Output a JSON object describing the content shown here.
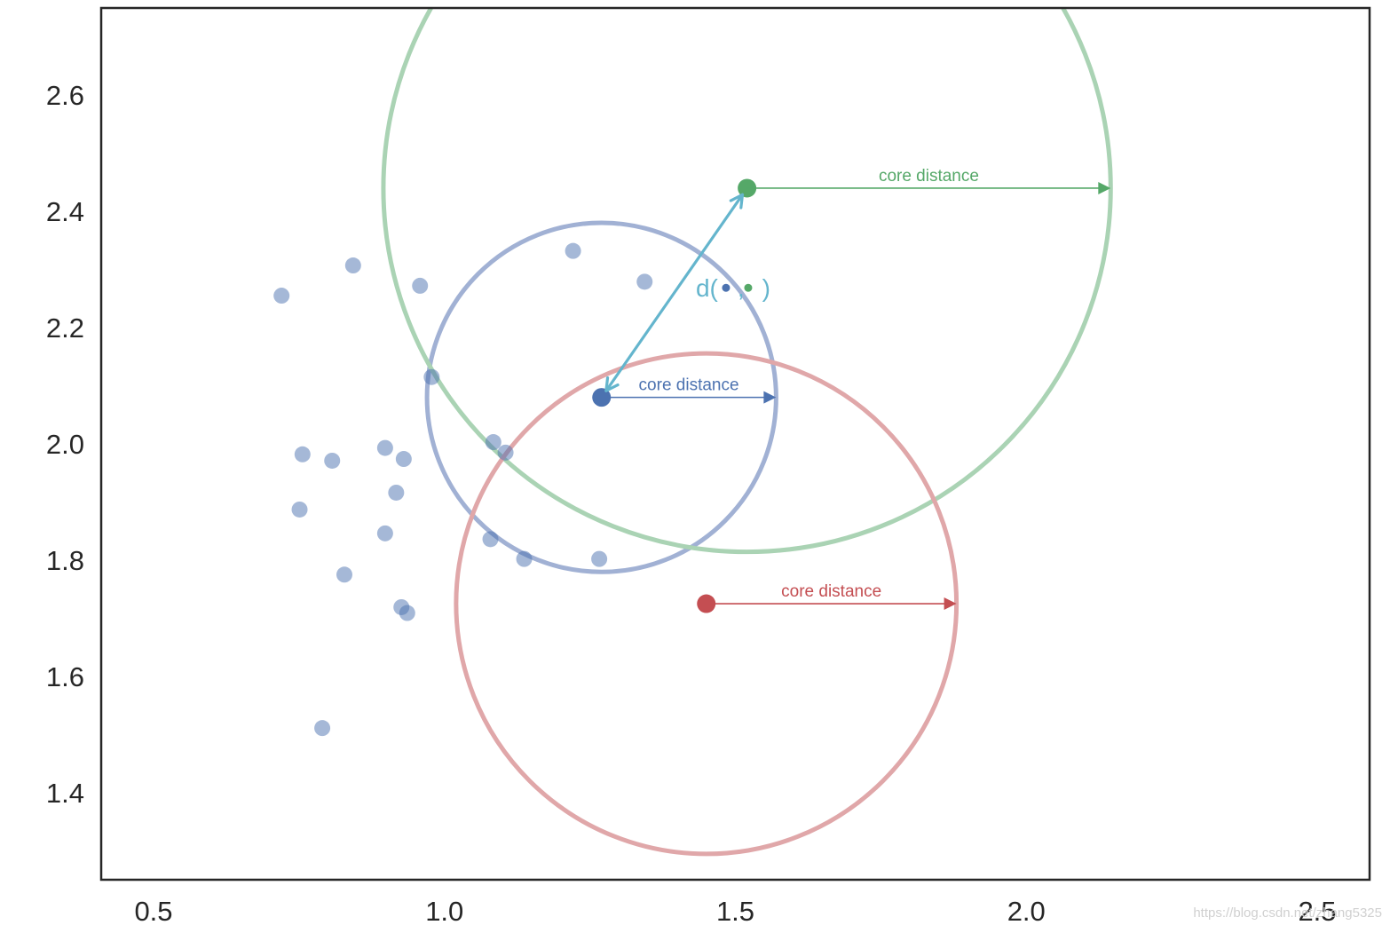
{
  "chart_data": {
    "type": "scatter",
    "title": "",
    "xlabel": "",
    "ylabel": "",
    "xlim": [
      0.41,
      2.59
    ],
    "ylim": [
      1.25,
      2.75
    ],
    "grid": false,
    "x_ticks": [
      0.5,
      1.0,
      1.5,
      2.0,
      2.5
    ],
    "x_tick_labels": [
      "0.5",
      "1.0",
      "1.5",
      "2.0",
      "2.5"
    ],
    "y_ticks": [
      1.4,
      1.6,
      1.8,
      2.0,
      2.2,
      2.4,
      2.6
    ],
    "y_tick_labels": [
      "1.4",
      "1.6",
      "1.8",
      "2.0",
      "2.2",
      "2.4",
      "2.6"
    ],
    "background_points": {
      "color": "#4c72b0",
      "opacity": 0.5,
      "points": [
        [
          0.72,
          2.255
        ],
        [
          0.843,
          2.307
        ],
        [
          0.958,
          2.272
        ],
        [
          1.221,
          2.332
        ],
        [
          1.344,
          2.279
        ],
        [
          0.978,
          2.115
        ],
        [
          1.084,
          2.003
        ],
        [
          1.105,
          1.985
        ],
        [
          0.756,
          1.982
        ],
        [
          0.807,
          1.971
        ],
        [
          0.898,
          1.993
        ],
        [
          0.93,
          1.974
        ],
        [
          0.917,
          1.916
        ],
        [
          0.751,
          1.887
        ],
        [
          0.898,
          1.846
        ],
        [
          1.079,
          1.836
        ],
        [
          1.137,
          1.802
        ],
        [
          1.266,
          1.802
        ],
        [
          0.828,
          1.775
        ],
        [
          0.926,
          1.719
        ],
        [
          0.936,
          1.709
        ],
        [
          0.79,
          1.511
        ]
      ]
    },
    "core_points": [
      {
        "name": "blue",
        "x": 1.27,
        "y": 2.08,
        "core_distance": 0.3,
        "color": "#4c72b0",
        "circle_color": "#a1b1d4",
        "label": "core distance"
      },
      {
        "name": "green",
        "x": 1.52,
        "y": 2.44,
        "core_distance": 0.625,
        "color": "#55a868",
        "circle_color": "#aad3b4",
        "label": "core distance"
      },
      {
        "name": "red",
        "x": 1.45,
        "y": 1.725,
        "core_distance": 0.43,
        "color": "#c44e52",
        "circle_color": "#e0a7a9",
        "label": "core distance"
      }
    ],
    "distance_arrow": {
      "from": [
        1.27,
        2.08
      ],
      "to": [
        1.52,
        2.44
      ],
      "color": "#64b5cd",
      "label_prefix": "d(",
      "label_sep": ",",
      "label_suffix": ")",
      "label_at": [
        1.49,
        2.27
      ]
    }
  },
  "watermark": "https://blog.csdn.net/zhang5325"
}
